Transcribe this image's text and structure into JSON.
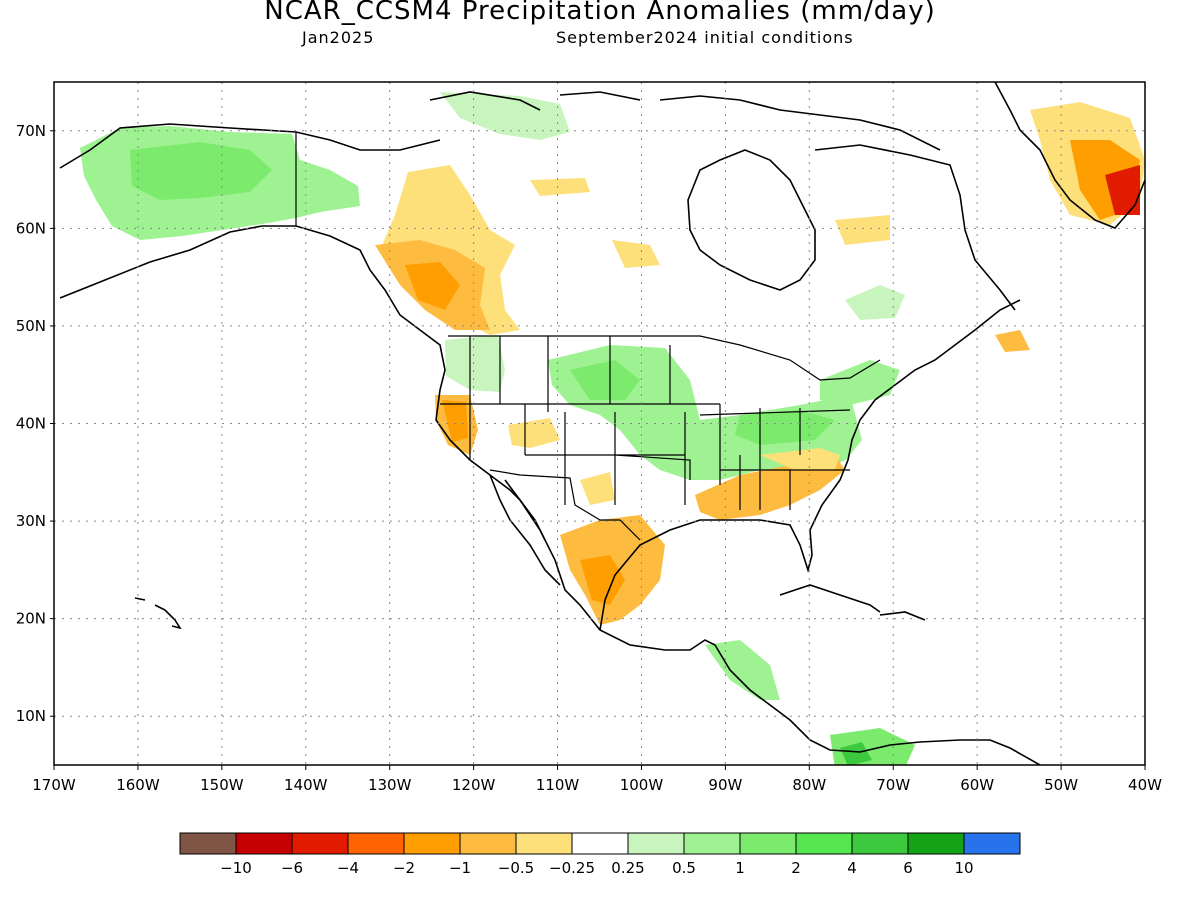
{
  "header": {
    "title": "NCAR_CCSM4 Precipitation Anomalies (mm/day)",
    "month": "Jan2025",
    "init": "September2024 initial conditions"
  },
  "map": {
    "lon_range": [
      -170,
      -40
    ],
    "lat_range": [
      5,
      75
    ],
    "lat_ticks": [
      {
        "value": 70,
        "label": "70N"
      },
      {
        "value": 60,
        "label": "60N"
      },
      {
        "value": 50,
        "label": "50N"
      },
      {
        "value": 40,
        "label": "40N"
      },
      {
        "value": 30,
        "label": "30N"
      },
      {
        "value": 20,
        "label": "20N"
      },
      {
        "value": 10,
        "label": "10N"
      }
    ],
    "lon_ticks": [
      {
        "value": -170,
        "label": "170W"
      },
      {
        "value": -160,
        "label": "160W"
      },
      {
        "value": -150,
        "label": "150W"
      },
      {
        "value": -140,
        "label": "140W"
      },
      {
        "value": -130,
        "label": "130W"
      },
      {
        "value": -120,
        "label": "120W"
      },
      {
        "value": -110,
        "label": "110W"
      },
      {
        "value": -100,
        "label": "100W"
      },
      {
        "value": -90,
        "label": "90W"
      },
      {
        "value": -80,
        "label": "80W"
      },
      {
        "value": -70,
        "label": "70W"
      },
      {
        "value": -60,
        "label": "60W"
      },
      {
        "value": -50,
        "label": "50W"
      },
      {
        "value": -40,
        "label": "40W"
      }
    ],
    "grid": true
  },
  "colorbar": {
    "colors": [
      "#7f5545",
      "#c40000",
      "#e01b00",
      "#ff6400",
      "#ff9e00",
      "#fdbb40",
      "#fee07a",
      "#ffffff",
      "#c8f5bd",
      "#9ef292",
      "#7ceb6d",
      "#55e650",
      "#3dc93d",
      "#15a316",
      "#2673eb"
    ],
    "labels": [
      "−10",
      "−6",
      "−4",
      "−2",
      "−1",
      "−0.5",
      "−0.25",
      "0.25",
      "0.5",
      "1",
      "2",
      "4",
      "6",
      "10"
    ]
  }
}
